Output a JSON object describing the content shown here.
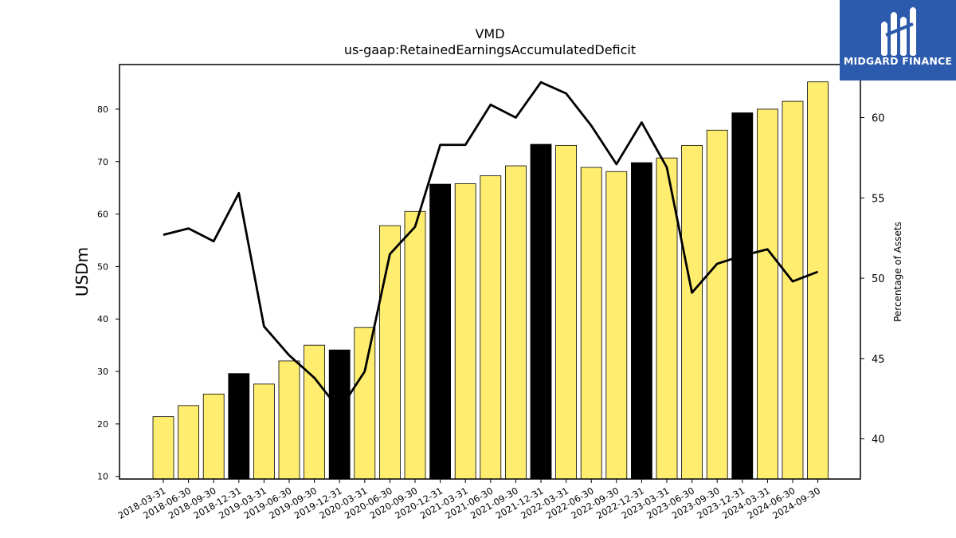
{
  "brand": {
    "name": "MIDGARD FINANCE",
    "icon": "midgard-m-logo-icon",
    "color": "#2c5aad"
  },
  "chart_data": {
    "type": "bar",
    "title": "VMD",
    "subtitle": "us-gaap:RetainedEarningsAccumulatedDeficit",
    "ylabel": "USDm",
    "y2label": "Percentage of Assets",
    "ylim": [
      9.5,
      88.5
    ],
    "y2lim": [
      37.5,
      63.3
    ],
    "yticks": [
      10,
      20,
      30,
      40,
      50,
      60,
      70,
      80
    ],
    "y2ticks": [
      40,
      45,
      50,
      55,
      60
    ],
    "categories": [
      "2018-03-31",
      "2018-06-30",
      "2018-09-30",
      "2018-12-31",
      "2019-03-31",
      "2019-06-30",
      "2019-09-30",
      "2019-12-31",
      "2020-03-31",
      "2020-06-30",
      "2020-09-30",
      "2020-12-31",
      "2021-03-31",
      "2021-06-30",
      "2021-09-30",
      "2021-12-31",
      "2022-03-31",
      "2022-06-30",
      "2022-09-30",
      "2022-12-31",
      "2023-03-31",
      "2023-06-30",
      "2023-09-30",
      "2023-12-31",
      "2024-03-31",
      "2024-06-30",
      "2024-09-30"
    ],
    "series": [
      {
        "type": "bar",
        "axis": "left",
        "values": [
          21.4,
          23.5,
          25.7,
          29.6,
          27.6,
          32.0,
          35.0,
          34.1,
          38.4,
          57.8,
          60.5,
          65.7,
          65.8,
          67.3,
          69.2,
          73.3,
          73.1,
          68.9,
          68.1,
          69.8,
          70.7,
          73.1,
          76.0,
          79.3,
          80.0,
          81.5,
          85.2
        ],
        "colors": [
          "#ffed6f",
          "#ffed6f",
          "#ffed6f",
          "#000000",
          "#ffed6f",
          "#ffed6f",
          "#ffed6f",
          "#000000",
          "#ffed6f",
          "#ffed6f",
          "#ffed6f",
          "#000000",
          "#ffed6f",
          "#ffed6f",
          "#ffed6f",
          "#000000",
          "#ffed6f",
          "#ffed6f",
          "#ffed6f",
          "#000000",
          "#ffed6f",
          "#ffed6f",
          "#ffed6f",
          "#000000",
          "#ffed6f",
          "#ffed6f",
          "#ffed6f"
        ]
      },
      {
        "type": "line",
        "axis": "right",
        "color": "#000000",
        "values": [
          52.7,
          53.1,
          52.3,
          55.3,
          47.0,
          45.2,
          43.8,
          41.8,
          44.2,
          51.5,
          53.2,
          58.3,
          58.3,
          60.8,
          60.0,
          62.2,
          61.5,
          59.5,
          57.1,
          59.7,
          56.9,
          49.1,
          50.9,
          51.4,
          51.8,
          49.8,
          50.4
        ]
      }
    ],
    "grid": false,
    "legend": "none"
  }
}
